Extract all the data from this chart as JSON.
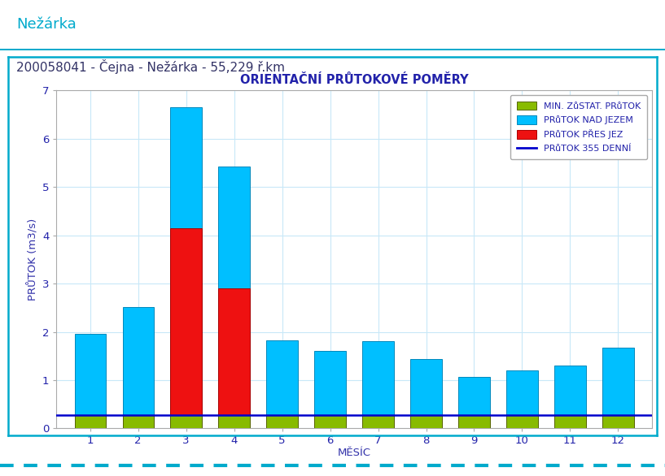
{
  "title": "ORIENTAČNÍ PRŮTOKOVÉ POMĚRY",
  "header_title": "Nežárka",
  "subtitle": "200058041 - Čejna - Nežárka - 55,229 ř.km",
  "xlabel": "MĚSÍC",
  "ylabel": "PRŮTOK (m3/s)",
  "months": [
    1,
    2,
    3,
    4,
    5,
    6,
    7,
    8,
    9,
    10,
    11,
    12
  ],
  "prutok_nad_jezem": [
    1.95,
    2.52,
    6.65,
    5.42,
    1.82,
    1.6,
    1.8,
    1.44,
    1.06,
    1.2,
    1.3,
    1.68
  ],
  "prutok_pres_jez": [
    0.27,
    0.27,
    4.15,
    2.9,
    0.27,
    0.27,
    0.27,
    0.27,
    0.27,
    0.27,
    0.27,
    0.27
  ],
  "min_zustat_prutok": [
    0.27,
    0.27,
    0.27,
    0.27,
    0.27,
    0.27,
    0.27,
    0.27,
    0.27,
    0.27,
    0.27,
    0.27
  ],
  "prutok_355_denni": 0.27,
  "ylim": [
    0,
    7
  ],
  "yticks": [
    0,
    1,
    2,
    3,
    4,
    5,
    6,
    7
  ],
  "bar_width": 0.65,
  "color_nad_jezem": "#00BFFF",
  "color_pres_jez": "#EE1111",
  "color_min_zustat": "#88BB00",
  "color_355_denni": "#0000CC",
  "color_title": "#2222AA",
  "color_header": "#00AACC",
  "color_subtitle": "#333366",
  "color_axis_labels": "#3333AA",
  "color_tick_labels": "#2222AA",
  "color_border": "#00AACC",
  "color_grid": "#C8E8F8",
  "legend_labels": [
    "MIN. ZůSTAT. PRůTOK",
    "PRůTOK NAD JEZEM",
    "PRůTOK PŘES JEZ",
    "PRůTOK 355 DENNÍ"
  ],
  "background_color": "#FFFFFF",
  "plot_bg_color": "#FFFFFF"
}
